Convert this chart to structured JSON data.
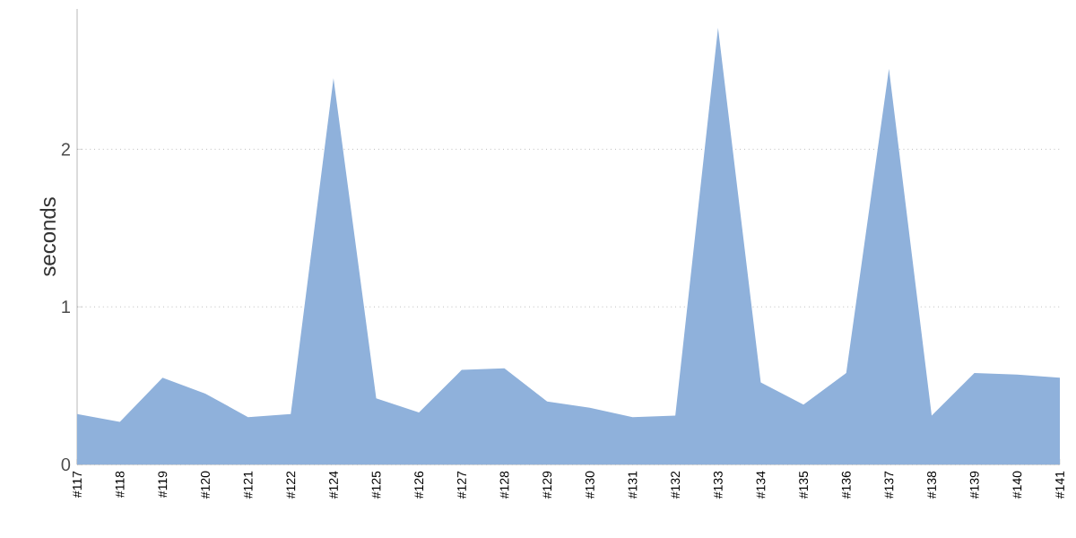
{
  "chart_data": {
    "type": "area",
    "ylabel": "seconds",
    "categories": [
      "#117",
      "#118",
      "#119",
      "#120",
      "#121",
      "#122",
      "#124",
      "#125",
      "#126",
      "#127",
      "#128",
      "#129",
      "#130",
      "#131",
      "#132",
      "#133",
      "#134",
      "#135",
      "#136",
      "#137",
      "#138",
      "#139",
      "#140",
      "#141"
    ],
    "series": [
      {
        "color": "#8fb1db",
        "values": [
          0.32,
          0.27,
          0.55,
          0.45,
          0.3,
          0.32,
          2.45,
          0.42,
          0.33,
          0.6,
          0.61,
          0.4,
          0.36,
          0.3,
          0.31,
          2.77,
          0.52,
          0.38,
          0.58,
          2.51,
          0.31,
          0.58,
          0.57,
          0.55
        ]
      }
    ],
    "ylim": [
      0,
      2.89
    ],
    "yticks": [
      0,
      1,
      2
    ],
    "grid": "y"
  }
}
